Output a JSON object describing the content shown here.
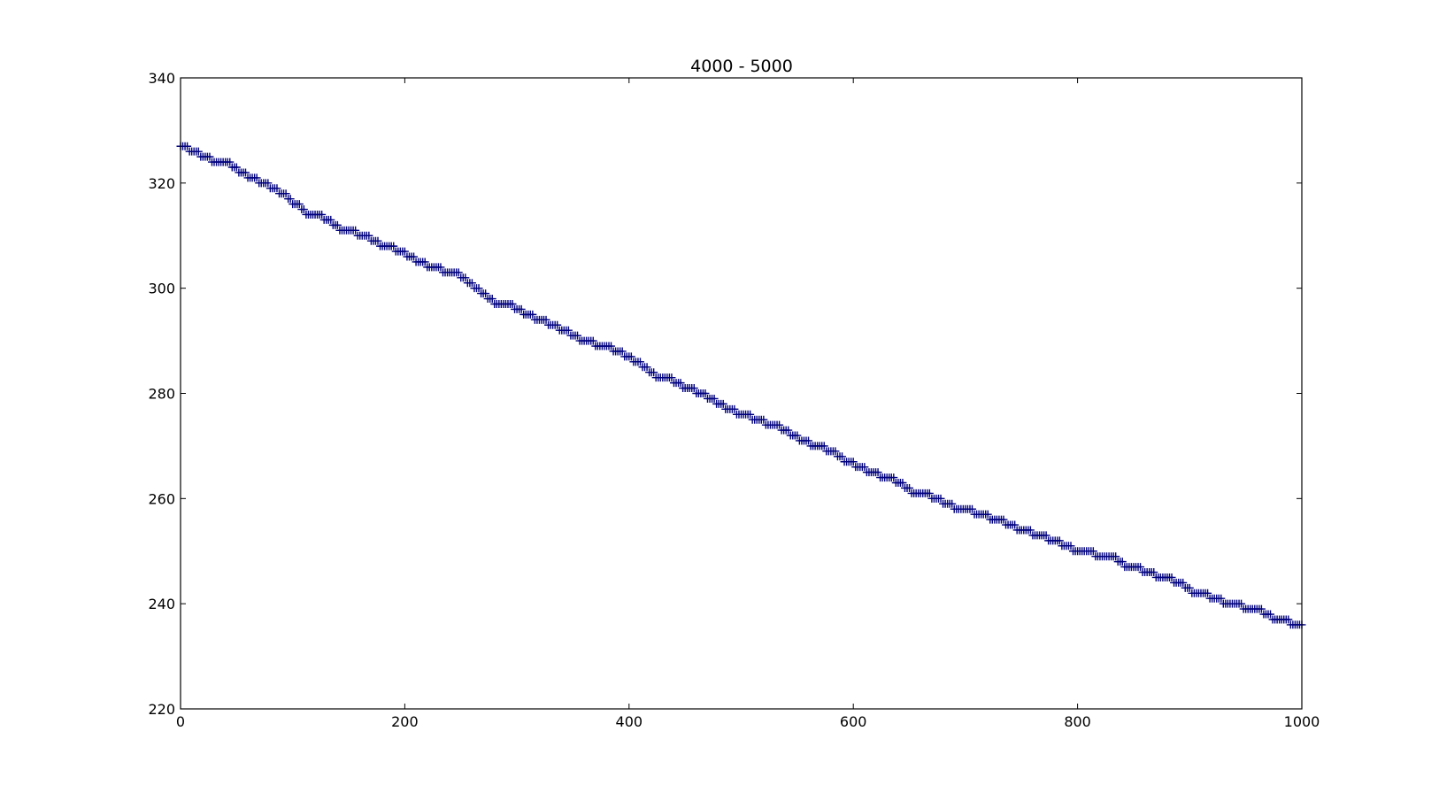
{
  "chart_data": {
    "type": "scatter",
    "title": "4000 - 5000",
    "xlabel": "",
    "ylabel": "",
    "xlim": [
      0,
      1000
    ],
    "ylim": [
      220,
      340
    ],
    "xticks": [
      0,
      200,
      400,
      600,
      800,
      1000
    ],
    "yticks": [
      220,
      240,
      260,
      280,
      300,
      320,
      340
    ],
    "grid": false,
    "legend": "none",
    "marker": "plus",
    "colors": {
      "marker": "#00007f",
      "axes": "#000000",
      "background": "#ffffff"
    },
    "steps": [
      [
        0,
        327
      ],
      [
        8,
        326
      ],
      [
        18,
        325
      ],
      [
        28,
        324
      ],
      [
        45,
        323
      ],
      [
        52,
        322
      ],
      [
        60,
        321
      ],
      [
        70,
        320
      ],
      [
        80,
        319
      ],
      [
        88,
        318
      ],
      [
        95,
        317
      ],
      [
        100,
        316
      ],
      [
        107,
        315
      ],
      [
        112,
        314
      ],
      [
        128,
        313
      ],
      [
        135,
        312
      ],
      [
        142,
        311
      ],
      [
        158,
        310
      ],
      [
        170,
        309
      ],
      [
        178,
        308
      ],
      [
        192,
        307
      ],
      [
        202,
        306
      ],
      [
        210,
        305
      ],
      [
        220,
        304
      ],
      [
        234,
        303
      ],
      [
        250,
        302
      ],
      [
        256,
        301
      ],
      [
        262,
        300
      ],
      [
        268,
        299
      ],
      [
        274,
        298
      ],
      [
        280,
        297
      ],
      [
        298,
        296
      ],
      [
        306,
        295
      ],
      [
        316,
        294
      ],
      [
        328,
        293
      ],
      [
        338,
        292
      ],
      [
        348,
        291
      ],
      [
        355,
        290
      ],
      [
        370,
        289
      ],
      [
        385,
        288
      ],
      [
        395,
        287
      ],
      [
        404,
        286
      ],
      [
        412,
        285
      ],
      [
        418,
        284
      ],
      [
        424,
        283
      ],
      [
        440,
        282
      ],
      [
        448,
        281
      ],
      [
        460,
        280
      ],
      [
        470,
        279
      ],
      [
        478,
        278
      ],
      [
        485,
        277
      ],
      [
        495,
        276
      ],
      [
        510,
        275
      ],
      [
        522,
        274
      ],
      [
        535,
        273
      ],
      [
        543,
        272
      ],
      [
        552,
        271
      ],
      [
        562,
        270
      ],
      [
        575,
        269
      ],
      [
        585,
        268
      ],
      [
        592,
        267
      ],
      [
        602,
        266
      ],
      [
        612,
        265
      ],
      [
        624,
        264
      ],
      [
        637,
        263
      ],
      [
        645,
        262
      ],
      [
        652,
        261
      ],
      [
        670,
        260
      ],
      [
        680,
        259
      ],
      [
        690,
        258
      ],
      [
        708,
        257
      ],
      [
        722,
        256
      ],
      [
        735,
        255
      ],
      [
        746,
        254
      ],
      [
        760,
        253
      ],
      [
        773,
        252
      ],
      [
        785,
        251
      ],
      [
        795,
        250
      ],
      [
        815,
        249
      ],
      [
        835,
        248
      ],
      [
        842,
        247
      ],
      [
        858,
        246
      ],
      [
        870,
        245
      ],
      [
        885,
        244
      ],
      [
        895,
        243
      ],
      [
        902,
        242
      ],
      [
        917,
        241
      ],
      [
        930,
        240
      ],
      [
        948,
        239
      ],
      [
        965,
        238
      ],
      [
        973,
        237
      ],
      [
        990,
        236
      ],
      [
        1000,
        236
      ]
    ]
  }
}
